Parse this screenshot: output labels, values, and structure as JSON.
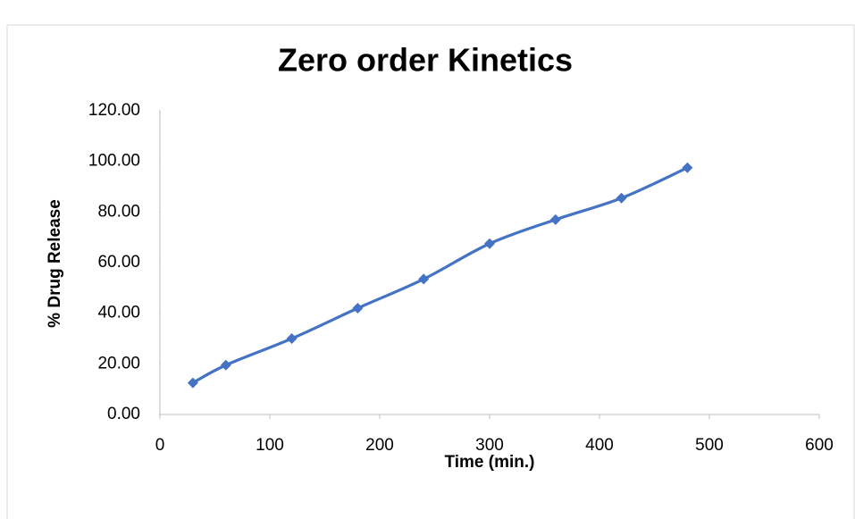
{
  "chart_data": {
    "type": "line",
    "title": "Zero order Kinetics",
    "xlabel": "Time (min.)",
    "ylabel": "% Drug Release",
    "x": [
      30,
      60,
      120,
      180,
      240,
      300,
      360,
      420,
      480
    ],
    "series": [
      {
        "name": "% Drug Release",
        "color": "#4472c4",
        "values": [
          12.5,
          19.5,
          30,
          42,
          53.5,
          67.5,
          77,
          85.5,
          97.5
        ]
      }
    ],
    "xlim": [
      0,
      600
    ],
    "xticks": [
      0,
      100,
      200,
      300,
      400,
      500,
      600
    ],
    "ylim": [
      0,
      120
    ],
    "yticks": [
      {
        "value": 0,
        "label": "0.00"
      },
      {
        "value": 20,
        "label": "20.00"
      },
      {
        "value": 40,
        "label": "40.00"
      },
      {
        "value": 60,
        "label": "60.00"
      },
      {
        "value": 80,
        "label": "80.00"
      },
      {
        "value": 100,
        "label": "100.00"
      },
      {
        "value": 120,
        "label": "120.00"
      }
    ],
    "smooth": true,
    "grid": false
  }
}
